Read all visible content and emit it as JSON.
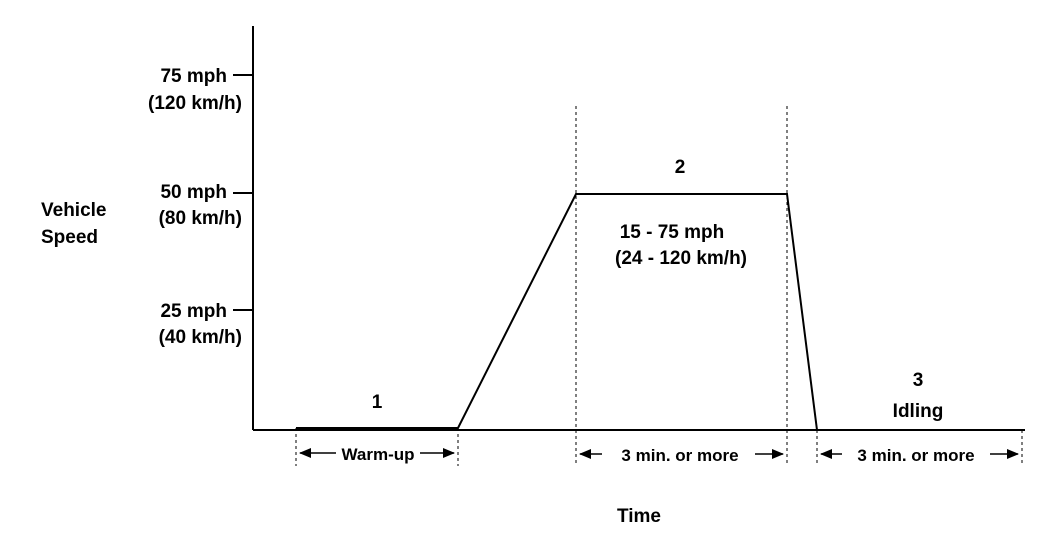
{
  "axes": {
    "y_label_line1": "Vehicle",
    "y_label_line2": "Speed",
    "x_label": "Time",
    "ticks": [
      {
        "mph": "75 mph",
        "kmh": "(120 km/h)"
      },
      {
        "mph": "50 mph",
        "kmh": "(80 km/h)"
      },
      {
        "mph": "25 mph",
        "kmh": "(40 km/h)"
      }
    ]
  },
  "phases": {
    "p1": {
      "number": "1",
      "span_label": "Warm-up"
    },
    "p2": {
      "number": "2",
      "range_line1": "15 - 75 mph",
      "range_line2": "(24 - 120 km/h)",
      "span_label": "3 min. or  more"
    },
    "p3": {
      "number": "3",
      "name": "Idling",
      "span_label": "3 min. or  more"
    }
  },
  "colors": {
    "line": "#000000",
    "background": "#ffffff"
  }
}
